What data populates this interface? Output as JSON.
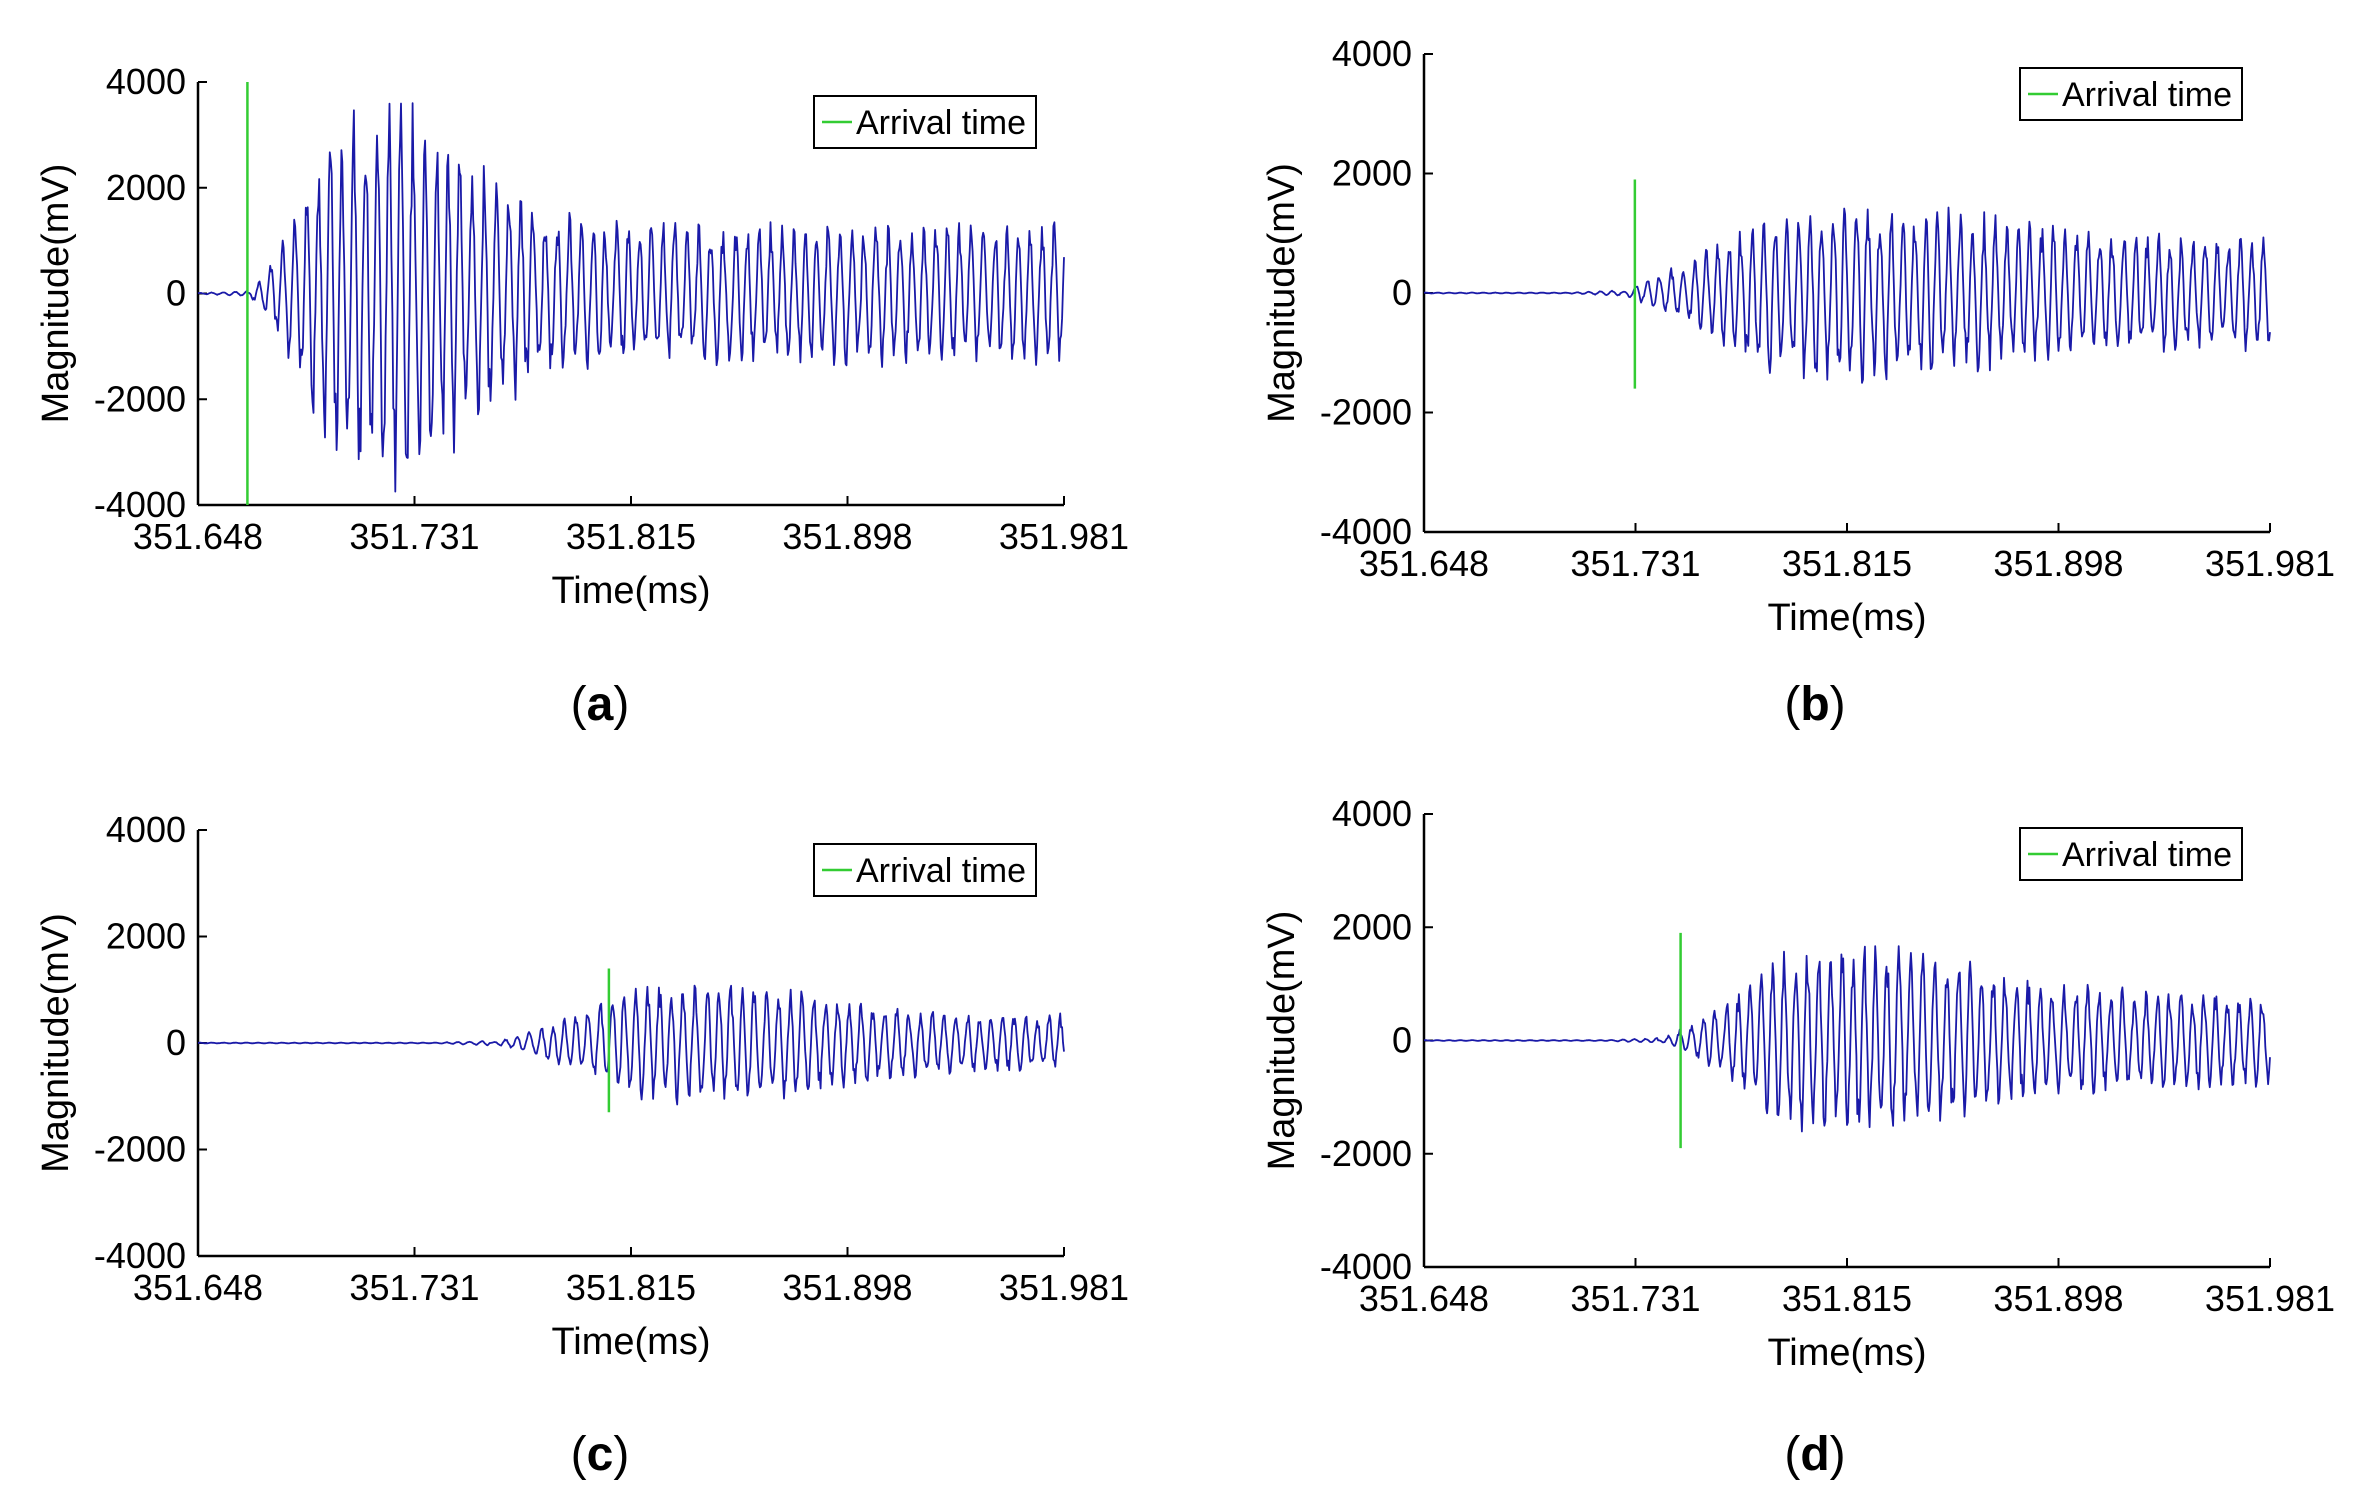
{
  "chart_data": [
    {
      "panel": "a",
      "caption_letter": "a",
      "type": "line",
      "xlabel": "Time(ms)",
      "ylabel": "Magnitude(mV)",
      "xticks": [
        "351.648",
        "351.731",
        "351.815",
        "351.898",
        "351.981"
      ],
      "xlim": [
        351.648,
        351.981
      ],
      "ylim": [
        -4000,
        4000
      ],
      "yticks": [
        "4000",
        "2000",
        "0",
        "-2000",
        "-4000"
      ],
      "grid": false,
      "legend": {
        "label": "Arrival time",
        "position": "top-right"
      },
      "arrival_time_ms": 351.667,
      "arrival_marker_range": [
        -4000,
        4000
      ],
      "series": {
        "name": "waveform",
        "color": "#1a1aa8",
        "quiet_until_ms": 351.667,
        "envelope_peak_mV": 3800,
        "envelope_peak_ms": 351.72,
        "coda_amplitude_mV": 1400
      }
    },
    {
      "panel": "b",
      "caption_letter": "b",
      "type": "line",
      "xlabel": "Time(ms)",
      "ylabel": "Magnitude(mV)",
      "xticks": [
        "351.648",
        "351.731",
        "351.815",
        "351.898",
        "351.981"
      ],
      "xlim": [
        351.648,
        351.981
      ],
      "ylim": [
        -4000,
        4000
      ],
      "yticks": [
        "4000",
        "2000",
        "0",
        "-2000",
        "-4000"
      ],
      "grid": false,
      "legend": {
        "label": "Arrival time",
        "position": "top-right"
      },
      "arrival_time_ms": 351.731,
      "arrival_marker_range": [
        -1600,
        1900
      ],
      "series": {
        "name": "waveform",
        "color": "#1a1aa8",
        "quiet_until_ms": 351.725,
        "envelope_peak_mV": 1600,
        "envelope_peak_ms": 351.82,
        "coda_amplitude_mV": 1000
      }
    },
    {
      "panel": "c",
      "caption_letter": "c",
      "type": "line",
      "xlabel": "Time(ms)",
      "ylabel": "Magnitude(mV)",
      "xticks": [
        "351.648",
        "351.731",
        "351.815",
        "351.898",
        "351.981"
      ],
      "xlim": [
        351.648,
        351.981
      ],
      "ylim": [
        -4000,
        4000
      ],
      "yticks": [
        "4000",
        "2000",
        "0",
        "-2000",
        "-4000"
      ],
      "grid": false,
      "legend": {
        "label": "Arrival time",
        "position": "top-right"
      },
      "arrival_time_ms": 351.806,
      "arrival_marker_range": [
        -1300,
        1400
      ],
      "series": {
        "name": "waveform",
        "color": "#1a1aa8",
        "quiet_until_ms": 351.76,
        "envelope_peak_mV": 1200,
        "envelope_peak_ms": 351.845,
        "coda_amplitude_mV": 550
      }
    },
    {
      "panel": "d",
      "caption_letter": "d",
      "type": "line",
      "xlabel": "Time(ms)",
      "ylabel": "Magnitude(mV)",
      "xticks": [
        "351.648",
        "351.731",
        "351.815",
        "351.898",
        "351.981"
      ],
      "xlim": [
        351.648,
        351.981
      ],
      "ylim": [
        -4000,
        4000
      ],
      "yticks": [
        "4000",
        "2000",
        "0",
        "-2000",
        "-4000"
      ],
      "grid": false,
      "legend": {
        "label": "Arrival time",
        "position": "top-right"
      },
      "arrival_time_ms": 351.749,
      "arrival_marker_range": [
        -1900,
        1900
      ],
      "series": {
        "name": "waveform",
        "color": "#1a1aa8",
        "quiet_until_ms": 351.74,
        "envelope_peak_mV": 1800,
        "envelope_peak_ms": 351.82,
        "coda_amplitude_mV": 900
      }
    }
  ],
  "style": {
    "axis_color": "#000000",
    "wave_color": "#1a1aa8",
    "arrival_color": "#33cc33"
  }
}
